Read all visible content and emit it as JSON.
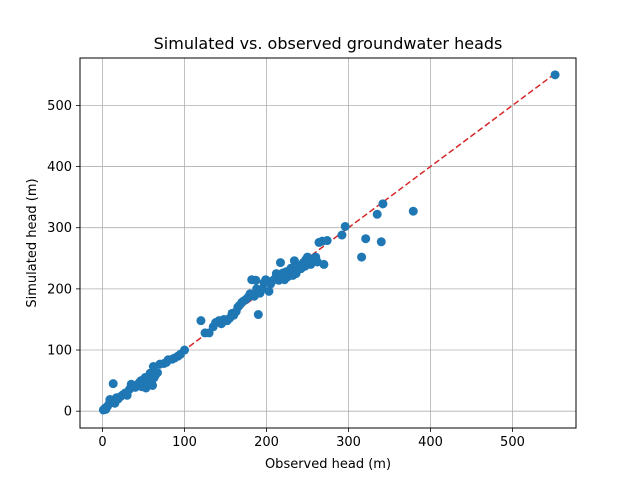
{
  "chart_data": {
    "type": "scatter",
    "title": "Simulated vs. observed groundwater heads",
    "xlabel": "Observed head (m)",
    "ylabel": "Simulated head (m)",
    "xlim": [
      -27.5,
      577.5
    ],
    "ylim": [
      -27.5,
      577.5
    ],
    "xticks": [
      0,
      100,
      200,
      300,
      400,
      500
    ],
    "yticks": [
      0,
      100,
      200,
      300,
      400,
      500
    ],
    "grid": true,
    "point_color": "#1f77b4",
    "line_color": "#d62728",
    "reference_line": {
      "x": [
        0,
        552
      ],
      "y": [
        0,
        552
      ],
      "style": "dashed"
    },
    "points": [
      [
        1,
        2
      ],
      [
        3,
        5
      ],
      [
        4,
        3
      ],
      [
        6,
        8
      ],
      [
        8,
        12
      ],
      [
        9,
        19
      ],
      [
        10,
        14
      ],
      [
        12,
        17
      ],
      [
        13,
        45
      ],
      [
        15,
        13
      ],
      [
        17,
        22
      ],
      [
        19,
        20
      ],
      [
        22,
        24
      ],
      [
        25,
        27
      ],
      [
        28,
        30
      ],
      [
        30,
        26
      ],
      [
        33,
        36
      ],
      [
        35,
        44
      ],
      [
        37,
        41
      ],
      [
        40,
        39
      ],
      [
        42,
        43
      ],
      [
        45,
        47
      ],
      [
        47,
        50
      ],
      [
        48,
        40
      ],
      [
        50,
        45
      ],
      [
        52,
        55
      ],
      [
        53,
        38
      ],
      [
        55,
        52
      ],
      [
        57,
        56
      ],
      [
        58,
        62
      ],
      [
        60,
        48
      ],
      [
        61,
        42
      ],
      [
        62,
        73
      ],
      [
        63,
        55
      ],
      [
        65,
        60
      ],
      [
        67,
        63
      ],
      [
        70,
        77
      ],
      [
        75,
        78
      ],
      [
        78,
        80
      ],
      [
        80,
        84
      ],
      [
        85,
        85
      ],
      [
        88,
        87
      ],
      [
        92,
        90
      ],
      [
        95,
        93
      ],
      [
        100,
        100
      ],
      [
        120,
        148
      ],
      [
        125,
        128
      ],
      [
        130,
        128
      ],
      [
        135,
        138
      ],
      [
        138,
        145
      ],
      [
        142,
        148
      ],
      [
        145,
        143
      ],
      [
        148,
        150
      ],
      [
        152,
        148
      ],
      [
        155,
        152
      ],
      [
        158,
        160
      ],
      [
        160,
        157
      ],
      [
        163,
        163
      ],
      [
        165,
        170
      ],
      [
        167,
        173
      ],
      [
        170,
        178
      ],
      [
        172,
        180
      ],
      [
        175,
        183
      ],
      [
        178,
        187
      ],
      [
        180,
        192
      ],
      [
        182,
        215
      ],
      [
        185,
        188
      ],
      [
        187,
        214
      ],
      [
        188,
        200
      ],
      [
        190,
        158
      ],
      [
        192,
        193
      ],
      [
        195,
        200
      ],
      [
        197,
        210
      ],
      [
        199,
        215
      ],
      [
        200,
        212
      ],
      [
        203,
        196
      ],
      [
        205,
        208
      ],
      [
        207,
        213
      ],
      [
        210,
        216
      ],
      [
        212,
        225
      ],
      [
        215,
        214
      ],
      [
        217,
        243
      ],
      [
        218,
        222
      ],
      [
        220,
        226
      ],
      [
        222,
        215
      ],
      [
        224,
        228
      ],
      [
        226,
        220
      ],
      [
        228,
        229
      ],
      [
        230,
        234
      ],
      [
        232,
        222
      ],
      [
        234,
        246
      ],
      [
        236,
        225
      ],
      [
        238,
        231
      ],
      [
        240,
        238
      ],
      [
        242,
        233
      ],
      [
        245,
        243
      ],
      [
        247,
        237
      ],
      [
        248,
        248
      ],
      [
        250,
        252
      ],
      [
        252,
        244
      ],
      [
        254,
        240
      ],
      [
        256,
        246
      ],
      [
        258,
        249
      ],
      [
        260,
        252
      ],
      [
        262,
        244
      ],
      [
        264,
        276
      ],
      [
        268,
        278
      ],
      [
        270,
        240
      ],
      [
        274,
        279
      ],
      [
        292,
        288
      ],
      [
        296,
        302
      ],
      [
        316,
        252
      ],
      [
        321,
        282
      ],
      [
        335,
        322
      ],
      [
        340,
        277
      ],
      [
        342,
        339
      ],
      [
        379,
        327
      ],
      [
        552,
        550
      ]
    ]
  }
}
